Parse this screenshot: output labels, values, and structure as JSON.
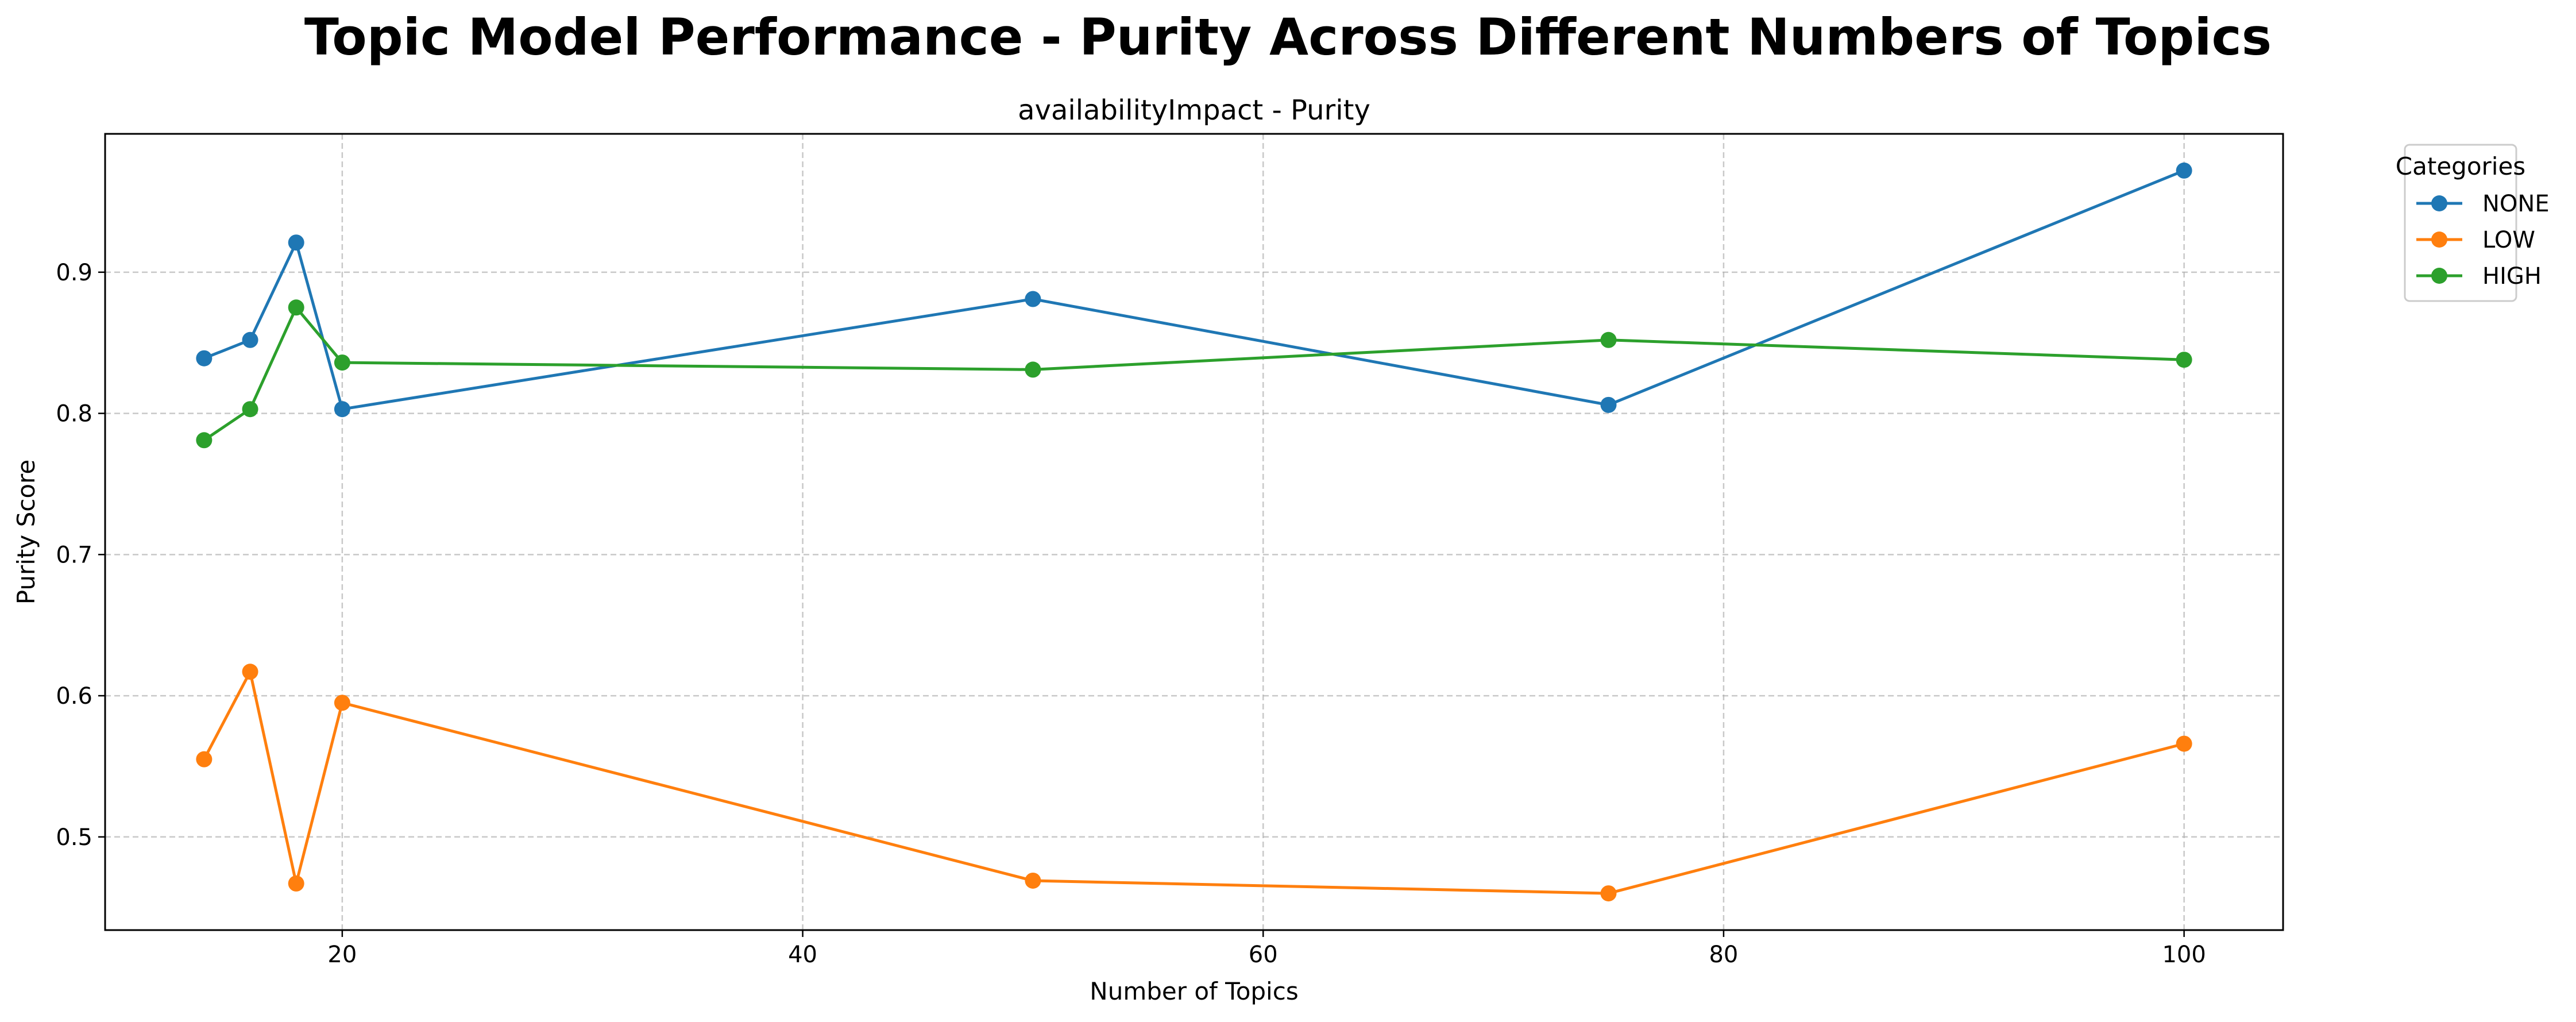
{
  "suptitle": "Topic Model Performance - Purity Across Different Numbers of Topics",
  "chart_data": {
    "type": "line",
    "title": "availabilityImpact - Purity",
    "xlabel": "Number of Topics",
    "ylabel": "Purity Score",
    "xlim": [
      9.7,
      104.3
    ],
    "ylim": [
      0.434,
      0.998
    ],
    "xticks": [
      20,
      40,
      60,
      80,
      100
    ],
    "yticks": [
      0.5,
      0.6,
      0.7,
      0.8,
      0.9
    ],
    "grid": true,
    "legend": {
      "title": "Categories",
      "placement": "outside-top-right"
    },
    "x": [
      14,
      16,
      18,
      20,
      50,
      75,
      100
    ],
    "series": [
      {
        "name": "NONE",
        "color": "#1f77b4",
        "values": [
          0.839,
          0.852,
          0.921,
          0.803,
          0.881,
          0.806,
          0.972
        ]
      },
      {
        "name": "LOW",
        "color": "#ff7f0e",
        "values": [
          0.555,
          0.617,
          0.467,
          0.595,
          0.469,
          0.46,
          0.566
        ]
      },
      {
        "name": "HIGH",
        "color": "#2ca02c",
        "values": [
          0.781,
          0.803,
          0.875,
          0.836,
          0.831,
          0.852,
          0.838
        ]
      }
    ]
  }
}
